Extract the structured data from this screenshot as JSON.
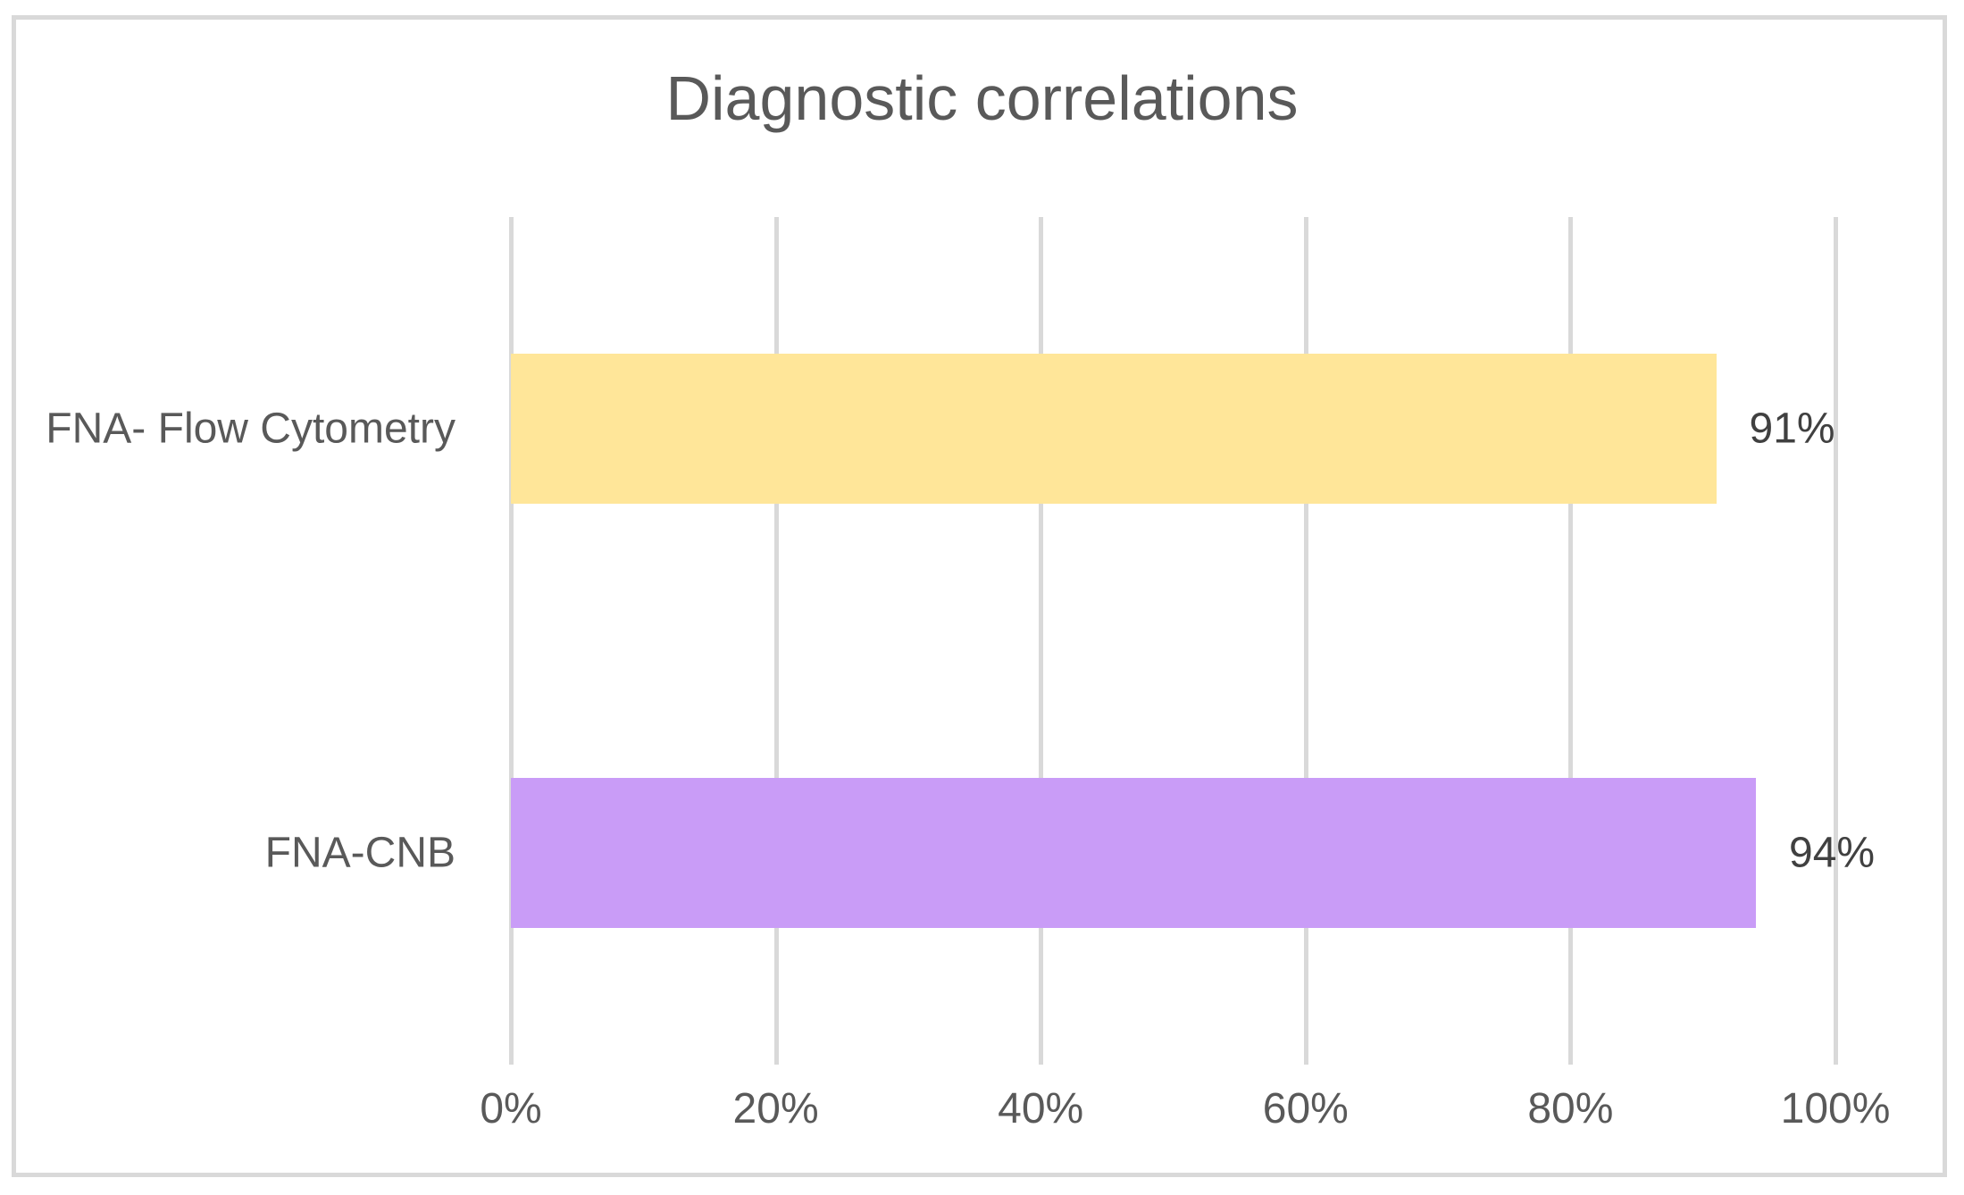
{
  "chart_data": {
    "type": "bar",
    "orientation": "horizontal",
    "title": "Diagnostic correlations",
    "categories": [
      "FNA- Flow Cytometry",
      "FNA-CNB"
    ],
    "values": [
      91,
      94
    ],
    "value_labels": [
      "91%",
      "94%"
    ],
    "bar_colors": [
      "#FFE699",
      "#C99CF7"
    ],
    "xlim": [
      0,
      100
    ],
    "x_ticks": [
      {
        "label": "0%",
        "value": 0
      },
      {
        "label": "20%",
        "value": 20
      },
      {
        "label": "40%",
        "value": 40
      },
      {
        "label": "60%",
        "value": 60
      },
      {
        "label": "80%",
        "value": 80
      },
      {
        "label": "100%",
        "value": 100
      }
    ],
    "grid": true,
    "legend": "none"
  },
  "styles": {
    "background": "#FFFFFF",
    "frame_border_color": "#D9D9D9",
    "gridline_color": "#D9D9D9",
    "title_text_color": "#595959",
    "axis_text_color": "#595959",
    "value_label_color": "#404040"
  }
}
